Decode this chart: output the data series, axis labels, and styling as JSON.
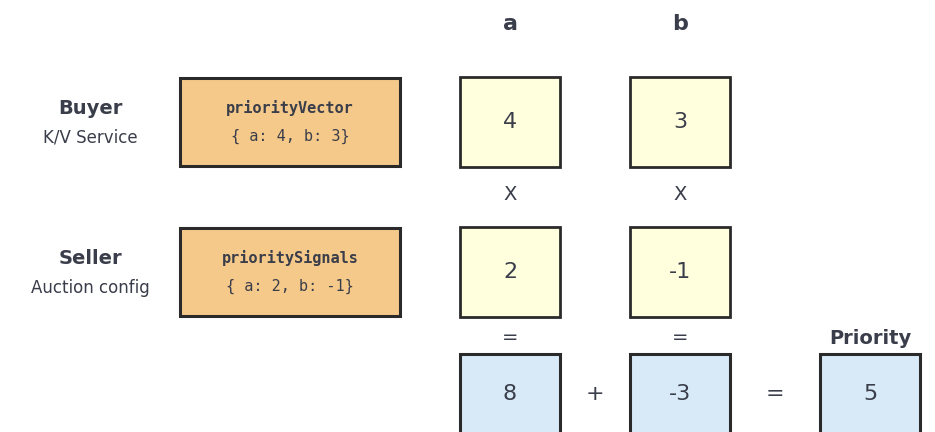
{
  "bg_color": "#ffffff",
  "orange_box_color": "#f5c98a",
  "orange_box_edge": "#2a2a2a",
  "yellow_box_color": "#ffffdd",
  "yellow_box_edge": "#2a2a2a",
  "blue_box_color": "#d8eaf8",
  "blue_box_edge": "#2a2a2a",
  "text_dark": "#3a3d4a",
  "text_mono": "#3a3d4a",
  "buyer_label_bold": "Buyer",
  "buyer_label_normal": "K/V Service",
  "seller_label_bold": "Seller",
  "seller_label_normal": "Auction config",
  "priority_vector_line1": "priorityVector",
  "priority_vector_line2": "{ a: 4, b: 3}",
  "priority_signals_line1": "prioritySignals",
  "priority_signals_line2": "{ a: 2, b: -1}",
  "col_a_label": "a",
  "col_b_label": "b",
  "buyer_a_val": "4",
  "buyer_b_val": "3",
  "seller_a_val": "2",
  "seller_b_val": "-1",
  "result_a_val": "8",
  "result_b_val": "-3",
  "priority_val": "5",
  "priority_label": "Priority",
  "multiply_symbol": "X",
  "equals_symbol": "=",
  "plus_symbol": "+"
}
